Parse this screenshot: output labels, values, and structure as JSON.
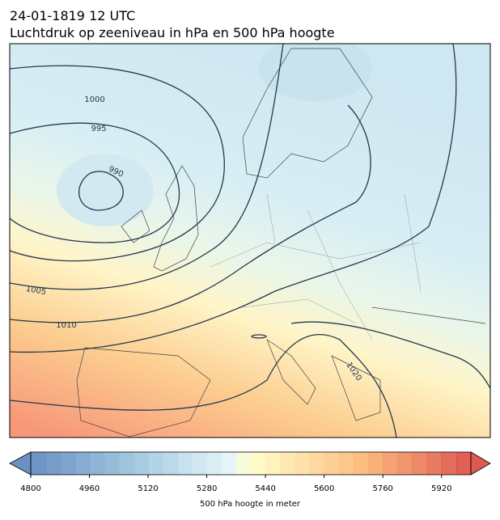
{
  "header": {
    "date": "24-01-1819 12 UTC",
    "title": "Luchtdruk op zeeniveau in hPa en 500 hPa hoogte"
  },
  "map": {
    "isobar_labels": [
      1000,
      995,
      990,
      1005,
      1010,
      1020
    ]
  },
  "colorbar": {
    "range": [
      4800,
      6000
    ],
    "step": 40,
    "ticks": [
      4800,
      4960,
      5120,
      5280,
      5440,
      5600,
      5760,
      5920
    ],
    "label": "500 hPa hoogte in meter",
    "extend": "both"
  }
}
